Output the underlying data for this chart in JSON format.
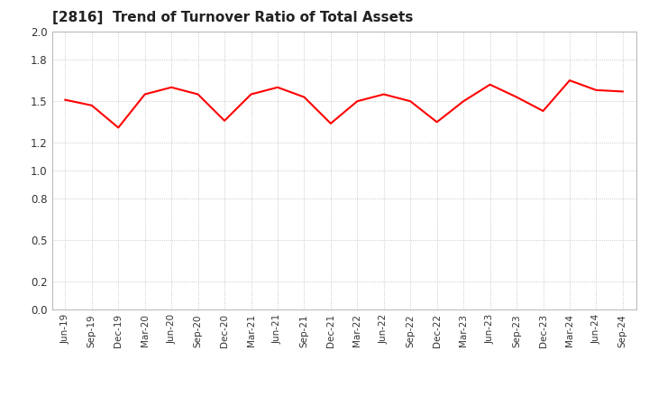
{
  "title": "[2816]  Trend of Turnover Ratio of Total Assets",
  "title_fontsize": 11,
  "line_color": "#ff0000",
  "line_width": 1.5,
  "background_color": "#ffffff",
  "grid_color": "#bbbbbb",
  "ylim": [
    0.0,
    2.0
  ],
  "yticks": [
    0.0,
    0.2,
    0.5,
    0.8,
    1.0,
    1.2,
    1.5,
    1.8,
    2.0
  ],
  "labels": [
    "Jun-19",
    "Sep-19",
    "Dec-19",
    "Mar-20",
    "Jun-20",
    "Sep-20",
    "Dec-20",
    "Mar-21",
    "Jun-21",
    "Sep-21",
    "Dec-21",
    "Mar-22",
    "Jun-22",
    "Sep-22",
    "Dec-22",
    "Mar-23",
    "Jun-23",
    "Sep-23",
    "Dec-23",
    "Mar-24",
    "Jun-24",
    "Sep-24"
  ],
  "values": [
    1.51,
    1.47,
    1.31,
    1.55,
    1.6,
    1.55,
    1.36,
    1.55,
    1.6,
    1.53,
    1.34,
    1.5,
    1.55,
    1.5,
    1.35,
    1.5,
    1.62,
    1.53,
    1.43,
    1.65,
    1.58,
    1.57
  ]
}
